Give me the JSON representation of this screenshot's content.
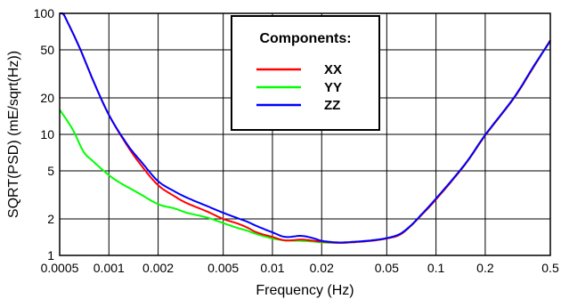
{
  "chart_data": {
    "type": "line",
    "xlabel": "Frequency (Hz)",
    "ylabel": "SQRT(PSD)  (mE/sqrt(Hz))",
    "x_scale": "log",
    "y_scale": "log",
    "xlim": [
      0.0005,
      0.5
    ],
    "ylim": [
      1,
      100
    ],
    "grid": true,
    "x_ticks": [
      0.0005,
      0.001,
      0.002,
      0.005,
      0.01,
      0.02,
      0.05,
      0.1,
      0.2,
      0.5
    ],
    "x_tick_labels": [
      "0.0005",
      "0.001",
      "0.002",
      "0.005",
      "0.01",
      "0.02",
      "0.05",
      "0.1",
      "0.2",
      "0.5"
    ],
    "y_ticks": [
      1,
      2,
      5,
      10,
      20,
      50,
      100
    ],
    "y_tick_labels": [
      "1",
      "2",
      "5",
      "10",
      "20",
      "50",
      "100"
    ],
    "legend": {
      "title": "Components:",
      "position": "top-center"
    },
    "series": [
      {
        "name": "XX",
        "color": "#ff0000",
        "points": [
          [
            0.0005,
            115
          ],
          [
            0.00065,
            55
          ],
          [
            0.0008,
            28
          ],
          [
            0.001,
            14.5
          ],
          [
            0.0013,
            8
          ],
          [
            0.0016,
            5.4
          ],
          [
            0.002,
            3.8
          ],
          [
            0.0025,
            3.1
          ],
          [
            0.003,
            2.7
          ],
          [
            0.004,
            2.3
          ],
          [
            0.005,
            2.0
          ],
          [
            0.006,
            1.85
          ],
          [
            0.007,
            1.7
          ],
          [
            0.008,
            1.55
          ],
          [
            0.01,
            1.42
          ],
          [
            0.012,
            1.33
          ],
          [
            0.015,
            1.35
          ],
          [
            0.018,
            1.32
          ],
          [
            0.02,
            1.3
          ],
          [
            0.025,
            1.27
          ],
          [
            0.03,
            1.28
          ],
          [
            0.04,
            1.32
          ],
          [
            0.05,
            1.38
          ],
          [
            0.06,
            1.48
          ],
          [
            0.07,
            1.75
          ],
          [
            0.08,
            2.1
          ],
          [
            0.1,
            2.9
          ],
          [
            0.15,
            5.6
          ],
          [
            0.2,
            9.8
          ],
          [
            0.3,
            20
          ],
          [
            0.4,
            37
          ],
          [
            0.5,
            60
          ]
        ]
      },
      {
        "name": "YY",
        "color": "#00ff00",
        "points": [
          [
            0.0005,
            16
          ],
          [
            0.0006,
            11
          ],
          [
            0.0007,
            7.2
          ],
          [
            0.0008,
            6
          ],
          [
            0.001,
            4.6
          ],
          [
            0.0012,
            3.9
          ],
          [
            0.0015,
            3.3
          ],
          [
            0.002,
            2.65
          ],
          [
            0.0025,
            2.45
          ],
          [
            0.003,
            2.25
          ],
          [
            0.004,
            2.05
          ],
          [
            0.005,
            1.85
          ],
          [
            0.006,
            1.7
          ],
          [
            0.007,
            1.6
          ],
          [
            0.008,
            1.5
          ],
          [
            0.01,
            1.38
          ],
          [
            0.012,
            1.33
          ],
          [
            0.015,
            1.32
          ],
          [
            0.018,
            1.3
          ],
          [
            0.02,
            1.28
          ],
          [
            0.025,
            1.27
          ],
          [
            0.03,
            1.28
          ],
          [
            0.04,
            1.32
          ],
          [
            0.05,
            1.38
          ],
          [
            0.06,
            1.48
          ],
          [
            0.07,
            1.75
          ],
          [
            0.08,
            2.1
          ],
          [
            0.1,
            2.9
          ],
          [
            0.15,
            5.6
          ],
          [
            0.2,
            9.8
          ],
          [
            0.3,
            20
          ],
          [
            0.4,
            37
          ],
          [
            0.5,
            60
          ]
        ]
      },
      {
        "name": "ZZ",
        "color": "#0000ff",
        "points": [
          [
            0.0005,
            115
          ],
          [
            0.00065,
            55
          ],
          [
            0.0008,
            28
          ],
          [
            0.001,
            14.5
          ],
          [
            0.0013,
            8.2
          ],
          [
            0.0016,
            5.8
          ],
          [
            0.002,
            4.1
          ],
          [
            0.0025,
            3.4
          ],
          [
            0.003,
            3.0
          ],
          [
            0.004,
            2.55
          ],
          [
            0.005,
            2.25
          ],
          [
            0.006,
            2.05
          ],
          [
            0.007,
            1.9
          ],
          [
            0.008,
            1.75
          ],
          [
            0.01,
            1.55
          ],
          [
            0.012,
            1.42
          ],
          [
            0.015,
            1.45
          ],
          [
            0.018,
            1.38
          ],
          [
            0.02,
            1.32
          ],
          [
            0.025,
            1.28
          ],
          [
            0.03,
            1.29
          ],
          [
            0.04,
            1.33
          ],
          [
            0.05,
            1.39
          ],
          [
            0.06,
            1.5
          ],
          [
            0.07,
            1.76
          ],
          [
            0.08,
            2.12
          ],
          [
            0.1,
            2.95
          ],
          [
            0.15,
            5.65
          ],
          [
            0.2,
            9.9
          ],
          [
            0.3,
            20.2
          ],
          [
            0.4,
            37.5
          ],
          [
            0.5,
            59
          ]
        ]
      }
    ]
  }
}
